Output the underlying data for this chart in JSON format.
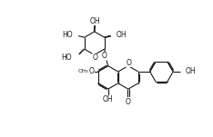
{
  "bg_color": "#ffffff",
  "line_color": "#1a1a1a",
  "line_width": 0.8,
  "font_size": 5.5,
  "fig_width": 2.34,
  "fig_height": 1.51,
  "dpi": 100,
  "xlim": [
    0,
    10
  ],
  "ylim": [
    0,
    6.5
  ]
}
